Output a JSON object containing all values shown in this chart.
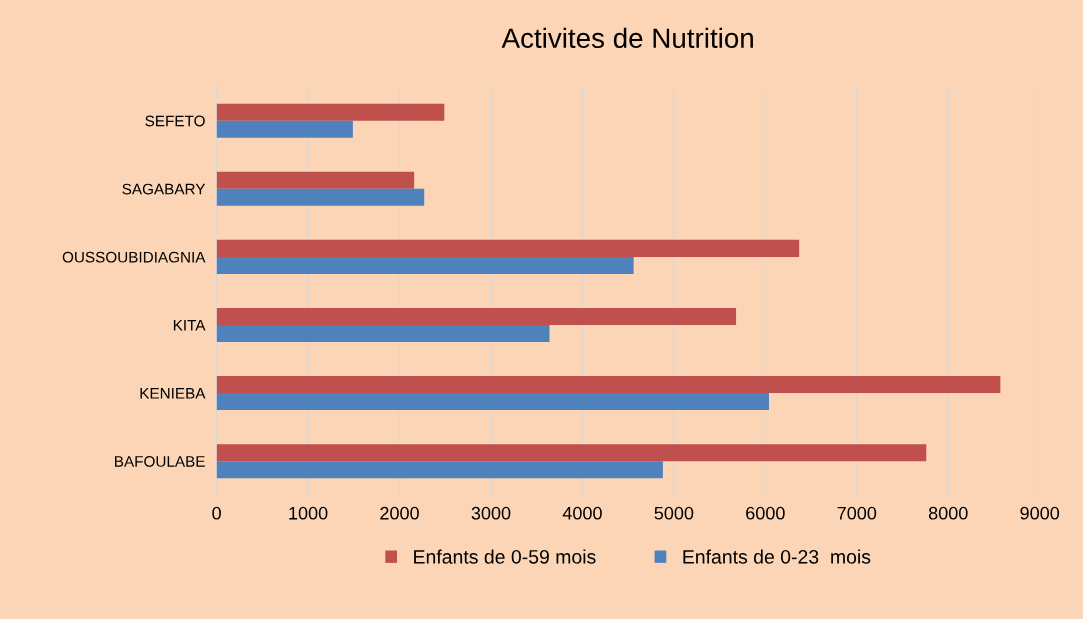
{
  "chart_data": {
    "type": "bar",
    "orientation": "horizontal",
    "title": "Activites de Nutrition",
    "categories": [
      "SEFETO",
      "SAGABARY",
      "OUSSOUBIDIAGNIA",
      "KITA",
      "KENIEBA",
      "BAFOULABE"
    ],
    "series": [
      {
        "name": "Enfants de 0-59 mois",
        "color": "#c0504d",
        "values": [
          2490,
          2160,
          6370,
          5680,
          8570,
          7760
        ]
      },
      {
        "name": "Enfants de 0-23  mois",
        "color": "#4f81bd",
        "values": [
          1490,
          2270,
          4560,
          3640,
          6040,
          4880
        ]
      }
    ],
    "xlim": [
      0,
      9000
    ],
    "xticks": [
      0,
      1000,
      2000,
      3000,
      4000,
      5000,
      6000,
      7000,
      8000,
      9000
    ],
    "grid": "x",
    "legend": "bottom"
  }
}
